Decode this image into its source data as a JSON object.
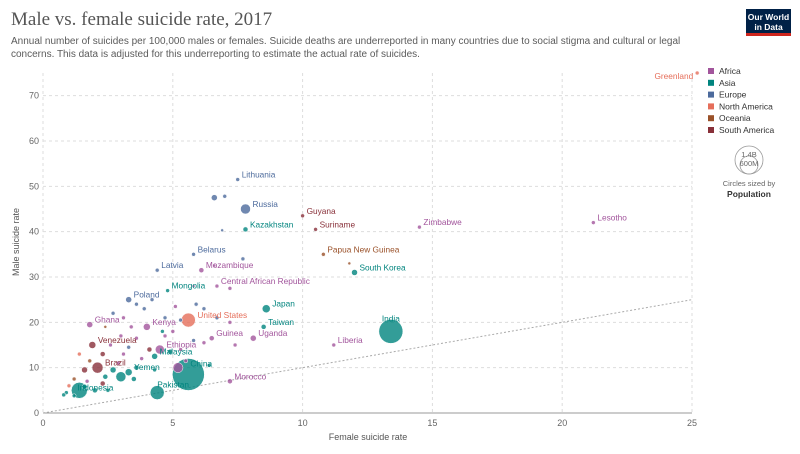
{
  "header": {
    "title": "Male vs. female suicide rate, 2017",
    "subtitle": "Annual number of suicides per 100,000 males or females. Suicide deaths are underreported in many countries due to social stigma and cultural or legal concerns. This data is adjusted for this underreporting to estimate the actual rate of suicides.",
    "logo_line1": "Our World",
    "logo_line2": "in Data"
  },
  "colors": {
    "Africa": "#a2559c",
    "Asia": "#00847e",
    "Europe": "#4c6a9c",
    "North America": "#e56e5a",
    "Oceania": "#9a5129",
    "South America": "#883039"
  },
  "size_legend": {
    "big": "1.4B",
    "small": "600M",
    "caption": "Circles sized by",
    "caption_bold": "Population"
  },
  "chart_data": {
    "type": "scatter",
    "xlabel": "Female suicide rate",
    "ylabel": "Male suicide rate",
    "xlim": [
      0,
      25
    ],
    "ylim": [
      0,
      75
    ],
    "xticks": [
      0,
      5,
      10,
      15,
      20,
      25
    ],
    "yticks": [
      0,
      10,
      20,
      30,
      40,
      50,
      60,
      70
    ],
    "legend": [
      "Africa",
      "Asia",
      "Europe",
      "North America",
      "Oceania",
      "South America"
    ],
    "legend_position": "right",
    "reference_line": "x = y",
    "labeled_points": [
      {
        "name": "Greenland",
        "x": 25.2,
        "y": 75,
        "region": "North America",
        "r": 2
      },
      {
        "name": "Lesotho",
        "x": 21.2,
        "y": 42,
        "region": "Africa",
        "r": 2
      },
      {
        "name": "Zimbabwe",
        "x": 14.5,
        "y": 41,
        "region": "Africa",
        "r": 2
      },
      {
        "name": "Lithuania",
        "x": 7.5,
        "y": 51.5,
        "region": "Europe",
        "r": 2
      },
      {
        "name": "Russia",
        "x": 7.8,
        "y": 45,
        "region": "Europe",
        "r": 5
      },
      {
        "name": "Kazakhstan",
        "x": 7.8,
        "y": 40.5,
        "region": "Asia",
        "r": 2.5
      },
      {
        "name": "Guyana",
        "x": 10,
        "y": 43.5,
        "region": "South America",
        "r": 2
      },
      {
        "name": "Suriname",
        "x": 10.5,
        "y": 40.5,
        "region": "South America",
        "r": 2
      },
      {
        "name": "Papua New Guinea",
        "x": 10.8,
        "y": 35,
        "region": "Oceania",
        "r": 2
      },
      {
        "name": "South Korea",
        "x": 12,
        "y": 31,
        "region": "Asia",
        "r": 3
      },
      {
        "name": "Belarus",
        "x": 5.8,
        "y": 35,
        "region": "Europe",
        "r": 2
      },
      {
        "name": "Latvia",
        "x": 4.4,
        "y": 31.5,
        "region": "Europe",
        "r": 2
      },
      {
        "name": "Mozambique",
        "x": 6.1,
        "y": 31.5,
        "region": "Africa",
        "r": 2.5
      },
      {
        "name": "Central African Republic",
        "x": 6.7,
        "y": 28,
        "region": "Africa",
        "r": 2
      },
      {
        "name": "Poland",
        "x": 3.3,
        "y": 25,
        "region": "Europe",
        "r": 3
      },
      {
        "name": "Mongolia",
        "x": 4.8,
        "y": 27,
        "region": "Asia",
        "r": 2
      },
      {
        "name": "Japan",
        "x": 8.6,
        "y": 23,
        "region": "Asia",
        "r": 4
      },
      {
        "name": "United States",
        "x": 5.6,
        "y": 20.5,
        "region": "North America",
        "r": 7
      },
      {
        "name": "Ghana",
        "x": 1.8,
        "y": 19.5,
        "region": "Africa",
        "r": 3
      },
      {
        "name": "Kenya",
        "x": 4,
        "y": 19,
        "region": "Africa",
        "r": 3.5
      },
      {
        "name": "Taiwan",
        "x": 8.5,
        "y": 19,
        "region": "Asia",
        "r": 2.5
      },
      {
        "name": "Guinea",
        "x": 6.5,
        "y": 16.5,
        "region": "Africa",
        "r": 2.5
      },
      {
        "name": "Uganda",
        "x": 8.1,
        "y": 16.5,
        "region": "Africa",
        "r": 3
      },
      {
        "name": "India",
        "x": 13.4,
        "y": 18,
        "region": "Asia",
        "r": 12
      },
      {
        "name": "Liberia",
        "x": 11.2,
        "y": 15,
        "region": "Africa",
        "r": 2
      },
      {
        "name": "Venezuela",
        "x": 1.9,
        "y": 15,
        "region": "South America",
        "r": 3.5
      },
      {
        "name": "Ethiopia",
        "x": 4.5,
        "y": 14,
        "region": "Africa",
        "r": 4.5
      },
      {
        "name": "Brazil",
        "x": 2.1,
        "y": 10,
        "region": "South America",
        "r": 5.5
      },
      {
        "name": "Malaysia",
        "x": 4.3,
        "y": 12.5,
        "region": "Asia",
        "r": 3
      },
      {
        "name": "China",
        "x": 5.6,
        "y": 8.5,
        "region": "Asia",
        "r": 16
      },
      {
        "name": "Yemen",
        "x": 3.3,
        "y": 9,
        "region": "Asia",
        "r": 3.5
      },
      {
        "name": "Morocco",
        "x": 7.2,
        "y": 7,
        "region": "Africa",
        "r": 2.5
      },
      {
        "name": "Indonesia",
        "x": 1.4,
        "y": 5,
        "region": "Asia",
        "r": 8
      },
      {
        "name": "Pakistan",
        "x": 4.4,
        "y": 4.5,
        "region": "Asia",
        "r": 7
      }
    ],
    "unlabeled_points": [
      {
        "x": 6.6,
        "y": 47.5,
        "region": "Europe",
        "r": 3
      },
      {
        "x": 7.0,
        "y": 47.8,
        "region": "Europe",
        "r": 2
      },
      {
        "x": 7.7,
        "y": 34,
        "region": "Europe",
        "r": 2
      },
      {
        "x": 11.8,
        "y": 33,
        "region": "Oceania",
        "r": 1.5
      },
      {
        "x": 6.9,
        "y": 40.3,
        "region": "Europe",
        "r": 1.5
      },
      {
        "x": 7.2,
        "y": 27.5,
        "region": "Africa",
        "r": 2
      },
      {
        "x": 5.8,
        "y": 28,
        "region": "Africa",
        "r": 1.5
      },
      {
        "x": 6.6,
        "y": 32.5,
        "region": "Africa",
        "r": 1.5
      },
      {
        "x": 3.6,
        "y": 24,
        "region": "Europe",
        "r": 2
      },
      {
        "x": 4.2,
        "y": 25,
        "region": "Europe",
        "r": 2
      },
      {
        "x": 5.9,
        "y": 24,
        "region": "Europe",
        "r": 2
      },
      {
        "x": 6.2,
        "y": 23,
        "region": "Europe",
        "r": 2
      },
      {
        "x": 3.9,
        "y": 23,
        "region": "Europe",
        "r": 2
      },
      {
        "x": 5.1,
        "y": 23.5,
        "region": "Africa",
        "r": 2
      },
      {
        "x": 2.7,
        "y": 22,
        "region": "Europe",
        "r": 2
      },
      {
        "x": 3.1,
        "y": 21,
        "region": "Africa",
        "r": 2
      },
      {
        "x": 4.7,
        "y": 21,
        "region": "Europe",
        "r": 2
      },
      {
        "x": 5.3,
        "y": 20.5,
        "region": "Europe",
        "r": 2
      },
      {
        "x": 6.7,
        "y": 21,
        "region": "Europe",
        "r": 2
      },
      {
        "x": 7.2,
        "y": 20,
        "region": "Africa",
        "r": 2
      },
      {
        "x": 3.4,
        "y": 19,
        "region": "Africa",
        "r": 2
      },
      {
        "x": 2.4,
        "y": 19,
        "region": "Oceania",
        "r": 1.5
      },
      {
        "x": 4.6,
        "y": 18,
        "region": "Asia",
        "r": 2
      },
      {
        "x": 5.0,
        "y": 18,
        "region": "Africa",
        "r": 2
      },
      {
        "x": 3.0,
        "y": 17,
        "region": "Africa",
        "r": 2
      },
      {
        "x": 3.6,
        "y": 16.5,
        "region": "Africa",
        "r": 2
      },
      {
        "x": 4.7,
        "y": 17,
        "region": "Africa",
        "r": 2
      },
      {
        "x": 5.8,
        "y": 16,
        "region": "Europe",
        "r": 2
      },
      {
        "x": 6.2,
        "y": 15.5,
        "region": "Africa",
        "r": 2
      },
      {
        "x": 7.4,
        "y": 15,
        "region": "Africa",
        "r": 2
      },
      {
        "x": 2.6,
        "y": 15,
        "region": "Africa",
        "r": 2
      },
      {
        "x": 3.3,
        "y": 14.5,
        "region": "Europe",
        "r": 2
      },
      {
        "x": 4.9,
        "y": 13.5,
        "region": "Asia",
        "r": 2.5
      },
      {
        "x": 4.1,
        "y": 14,
        "region": "South America",
        "r": 2.5
      },
      {
        "x": 5.3,
        "y": 14,
        "region": "Africa",
        "r": 2
      },
      {
        "x": 1.4,
        "y": 13,
        "region": "North America",
        "r": 2
      },
      {
        "x": 2.3,
        "y": 13,
        "region": "South America",
        "r": 2.5
      },
      {
        "x": 3.1,
        "y": 13,
        "region": "Africa",
        "r": 2
      },
      {
        "x": 3.8,
        "y": 12,
        "region": "Africa",
        "r": 2
      },
      {
        "x": 5.5,
        "y": 11.5,
        "region": "Africa",
        "r": 2
      },
      {
        "x": 6.4,
        "y": 10.5,
        "region": "Asia",
        "r": 2
      },
      {
        "x": 1.8,
        "y": 11.5,
        "region": "Oceania",
        "r": 2
      },
      {
        "x": 2.9,
        "y": 11,
        "region": "Africa",
        "r": 2
      },
      {
        "x": 1.6,
        "y": 9.5,
        "region": "South America",
        "r": 3
      },
      {
        "x": 2.7,
        "y": 9.5,
        "region": "Asia",
        "r": 3
      },
      {
        "x": 3.6,
        "y": 10,
        "region": "Asia",
        "r": 2.5
      },
      {
        "x": 5.2,
        "y": 10,
        "region": "Africa",
        "r": 5
      },
      {
        "x": 4.3,
        "y": 9.5,
        "region": "Asia",
        "r": 2
      },
      {
        "x": 2.4,
        "y": 8,
        "region": "Asia",
        "r": 2.5
      },
      {
        "x": 3.0,
        "y": 8,
        "region": "Asia",
        "r": 5
      },
      {
        "x": 3.5,
        "y": 7.5,
        "region": "Asia",
        "r": 2.5
      },
      {
        "x": 1.2,
        "y": 7.5,
        "region": "Oceania",
        "r": 2
      },
      {
        "x": 1.7,
        "y": 7,
        "region": "Africa",
        "r": 2
      },
      {
        "x": 2.3,
        "y": 6.5,
        "region": "South America",
        "r": 2.5
      },
      {
        "x": 1.0,
        "y": 6,
        "region": "North America",
        "r": 2
      },
      {
        "x": 1.6,
        "y": 5.8,
        "region": "Asia",
        "r": 2.5
      },
      {
        "x": 2.0,
        "y": 5,
        "region": "Asia",
        "r": 2.5
      },
      {
        "x": 0.9,
        "y": 4.5,
        "region": "Asia",
        "r": 2
      },
      {
        "x": 2.5,
        "y": 5,
        "region": "Asia",
        "r": 2
      },
      {
        "x": 1.2,
        "y": 3.8,
        "region": "Asia",
        "r": 2
      },
      {
        "x": 0.8,
        "y": 4.0,
        "region": "Asia",
        "r": 2
      }
    ]
  }
}
